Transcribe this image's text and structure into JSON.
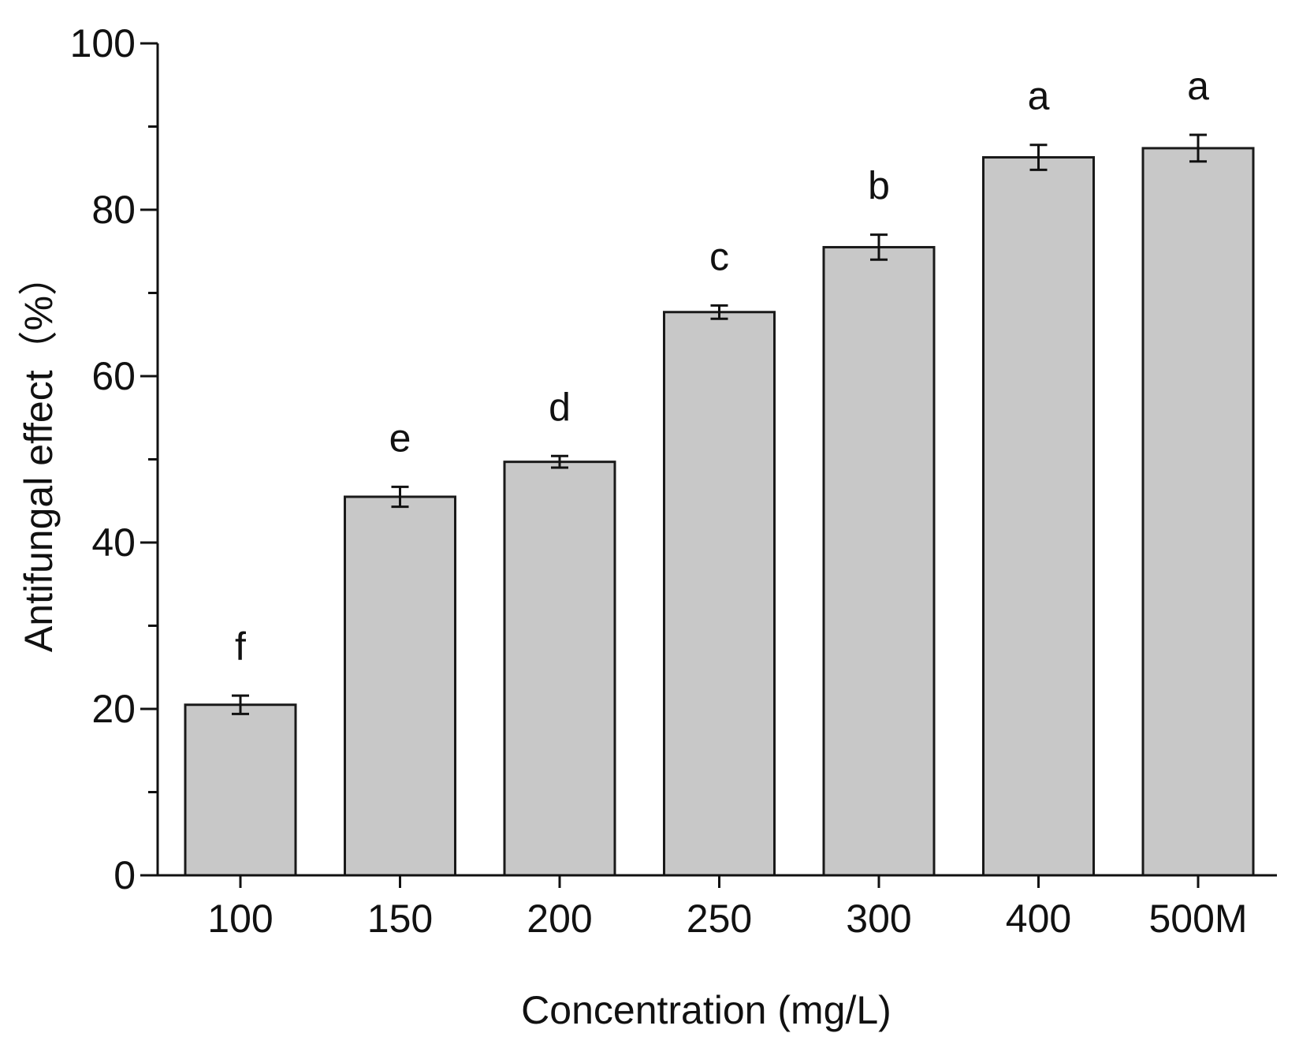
{
  "chart_data": {
    "type": "bar",
    "title": "",
    "xlabel": "Concentration (mg/L)",
    "ylabel": "Antifungal effect（%）",
    "categories": [
      "100",
      "150",
      "200",
      "250",
      "300",
      "400",
      "500M"
    ],
    "values": [
      20.5,
      45.5,
      49.7,
      67.7,
      75.5,
      86.3,
      87.4
    ],
    "errors": [
      1.1,
      1.2,
      0.7,
      0.8,
      1.5,
      1.5,
      1.6
    ],
    "significance_letters": [
      "f",
      "e",
      "d",
      "c",
      "b",
      "a",
      "a"
    ],
    "ylim": [
      0,
      100
    ],
    "y_major_ticks": [
      0,
      20,
      40,
      60,
      80,
      100
    ],
    "y_minor_ticks": [
      10,
      30,
      50,
      70,
      90
    ],
    "grid": false,
    "legend": "none",
    "bar_color": "#c8c8c8",
    "edge_color": "#1a1a1a"
  }
}
